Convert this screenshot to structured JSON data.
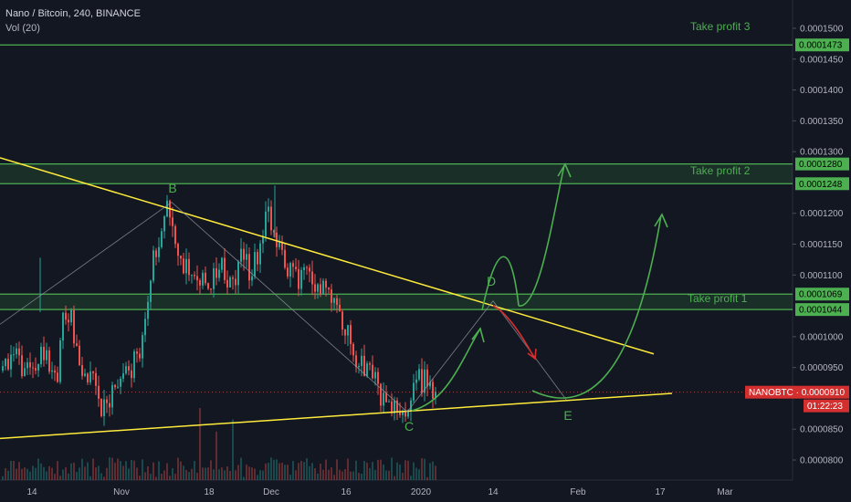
{
  "header": {
    "title": "Nano / Bitcoin, 240, BINANCE",
    "volume": "Vol (20)"
  },
  "colors": {
    "bg": "#131722",
    "up": "#26a69a",
    "down": "#ef5350",
    "zone": "#4caf50",
    "trend": "#ffeb3b",
    "accent": "#d32f2f"
  },
  "chart_data": {
    "type": "candlestick",
    "symbol": "NANOBTC",
    "last_price": "0.0000910",
    "countdown": "01:22:23",
    "ylim": [
      7.8e-05,
      0.000153
    ],
    "y_ticks": [
      "0.0001500",
      "0.0001450",
      "0.0001400",
      "0.0001350",
      "0.0001300",
      "0.0001200",
      "0.0001150",
      "0.0001100",
      "0.0001000",
      "0.0000950",
      "0.0000850",
      "0.0000800"
    ],
    "x_ticks": [
      "14",
      "Nov",
      "18",
      "Dec",
      "16",
      "2020",
      "14",
      "Feb",
      "17",
      "Mar"
    ],
    "zones": [
      {
        "label": "Take profit 3",
        "price": "0.0001473",
        "top": 0.0001473,
        "bottom": 0.0001473
      },
      {
        "label": "Take profit 2",
        "price_top": "0.0001280",
        "price_bottom": "0.0001248",
        "top": 0.000128,
        "bottom": 0.0001248
      },
      {
        "label": "Take profit 1",
        "price_top": "0.0001069",
        "price_bottom": "0.0001044",
        "top": 0.0001069,
        "bottom": 0.0001044
      }
    ],
    "pattern_points": [
      "B",
      "C",
      "D",
      "E"
    ],
    "price_path": [
      9.45e-05,
      9.5e-05,
      9.75e-05,
      9.6e-05,
      9.4e-05,
      9.35e-05,
      9.55e-05,
      9.85e-05,
      9.5e-05,
      9.3e-05,
      0.000105,
      0.000104,
      9.9e-05,
      9.6e-05,
      9.5e-05,
      9.2e-05,
      8.9e-05,
      8.8e-05,
      9e-05,
      9.3e-05,
      9.5e-05,
      9.45e-05,
      9.6e-05,
      9.7e-05,
      0.000105,
      0.000115,
      0.000114,
      0.000121,
      0.000118,
      0.000114,
      0.000111,
      0.00011,
      0.000108,
      0.000109,
      0.000107,
      0.00011,
      0.000113,
      0.00011,
      0.000108,
      0.000112,
      0.000114,
      0.00011,
      0.000113,
      0.000117,
      0.00012,
      0.000116,
      0.000114,
      0.000112,
      0.00011,
      0.0001095,
      0.00011,
      0.000109,
      0.000107,
      0.00011,
      0.000108,
      0.000106,
      0.000103,
      0.0001,
      9.8e-05,
      9.6e-05,
      9.5e-05,
      9.3e-05,
      9.2e-05,
      9e-05,
      8.95e-05,
      8.85e-05,
      8.8e-05,
      8.9e-05,
      9.1e-05,
      9.3e-05,
      9.25e-05,
      9.15e-05,
      9.1e-05
    ]
  }
}
